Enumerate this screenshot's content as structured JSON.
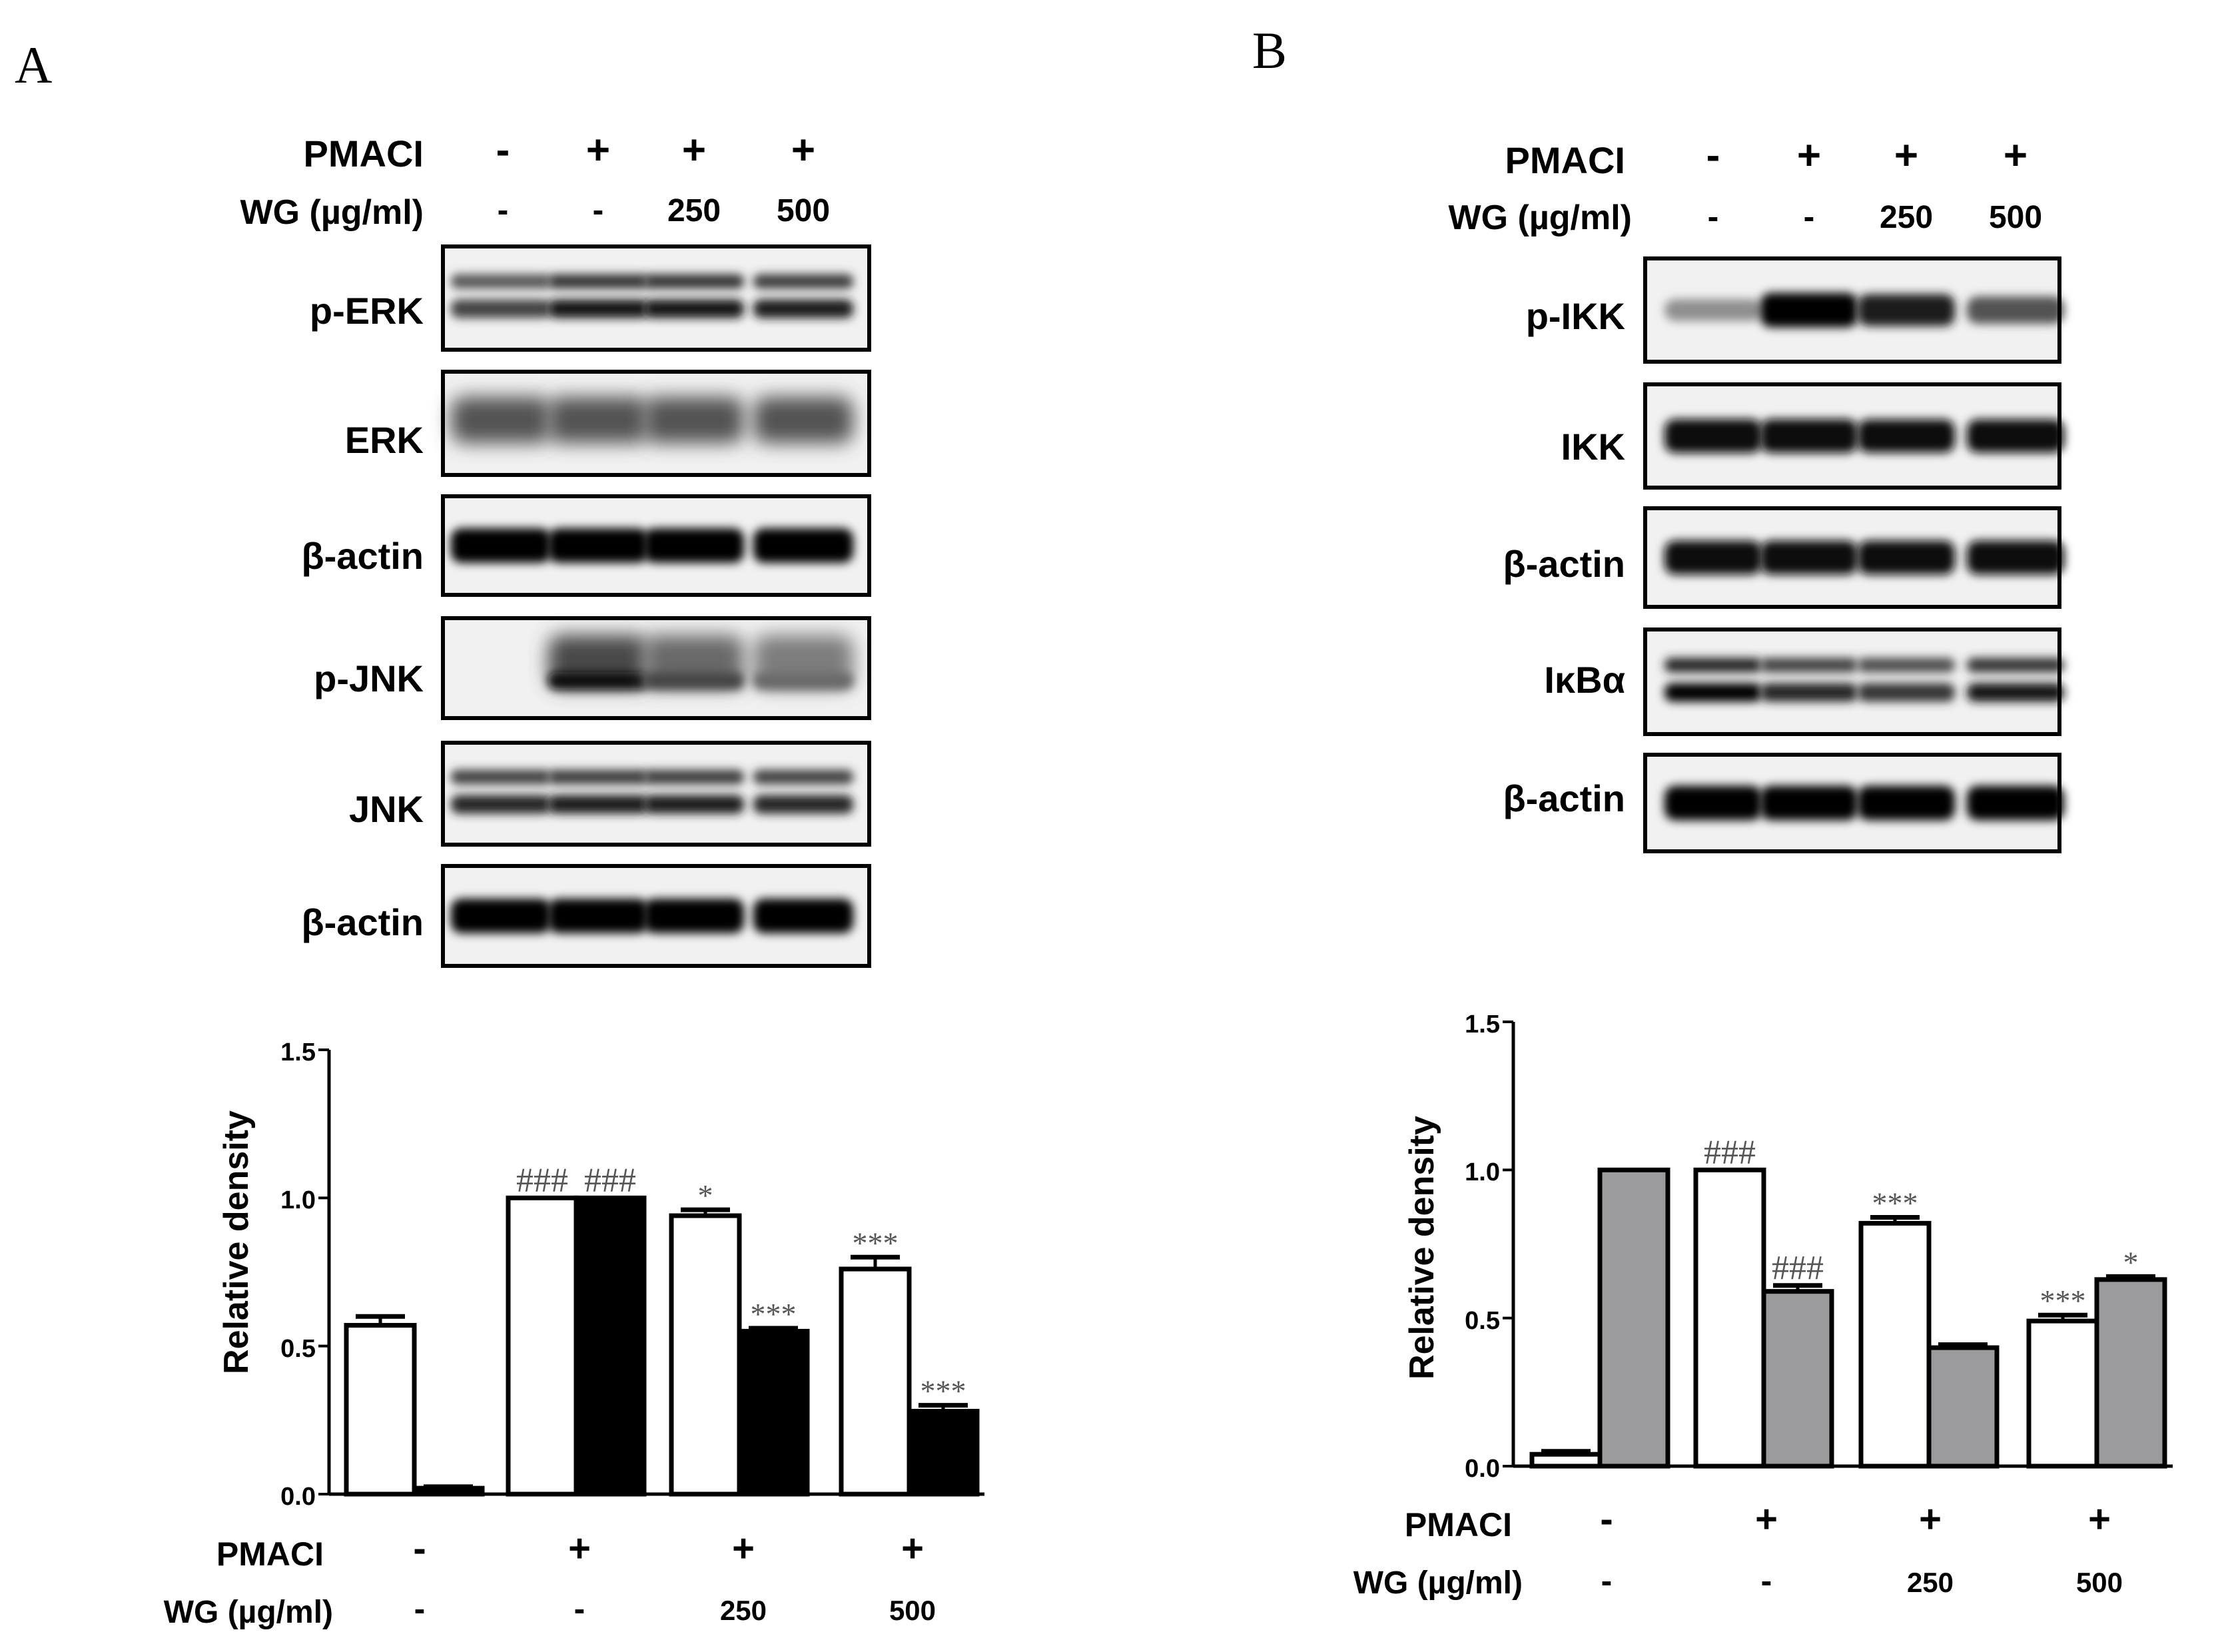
{
  "panels": [
    {
      "letter": "A",
      "header": {
        "pmaci_label": "PMACI",
        "wg_label": "WG (µg/ml)",
        "pmaci_values": [
          "-",
          "+",
          "+",
          "+"
        ],
        "wg_values": [
          "-",
          "-",
          "250",
          "500"
        ]
      },
      "blots": [
        {
          "label": "p-ERK",
          "pattern": "double",
          "intensity": [
            0.55,
            0.85,
            0.85,
            0.8
          ]
        },
        {
          "label": "ERK",
          "pattern": "diffuse",
          "intensity": [
            0.45,
            0.45,
            0.45,
            0.45
          ]
        },
        {
          "label": "β-actin",
          "pattern": "single",
          "intensity": [
            1,
            1,
            1,
            1
          ]
        },
        {
          "label": "p-JNK",
          "pattern": "smear",
          "intensity": [
            0.0,
            0.95,
            0.55,
            0.3
          ]
        },
        {
          "label": "JNK",
          "pattern": "double",
          "intensity": [
            0.75,
            0.8,
            0.8,
            0.75
          ]
        },
        {
          "label": "β-actin",
          "pattern": "single",
          "intensity": [
            1,
            1,
            1,
            1
          ]
        }
      ],
      "chart_axis": {
        "ylabel": "Relative density",
        "ticks": [
          "0.0",
          "0.5",
          "1.0",
          "1.5"
        ]
      },
      "chart_footer": {
        "pmaci_label": "PMACI",
        "wg_label": "WG (µg/ml)",
        "pmaci_values": [
          "-",
          "+",
          "+",
          "+"
        ],
        "wg_values": [
          "-",
          "-",
          "250",
          "500"
        ]
      }
    },
    {
      "letter": "B",
      "header": {
        "pmaci_label": "PMACI",
        "wg_label": "WG (µg/ml)",
        "pmaci_values": [
          "-",
          "+",
          "+",
          "+"
        ],
        "wg_values": [
          "-",
          "-",
          "250",
          "500"
        ]
      },
      "blots": [
        {
          "label": "p-IKK",
          "pattern": "single",
          "intensity": [
            0.05,
            1,
            0.8,
            0.45
          ]
        },
        {
          "label": "IKK",
          "pattern": "single",
          "intensity": [
            0.95,
            0.95,
            0.9,
            0.9
          ]
        },
        {
          "label": "β-actin",
          "pattern": "single",
          "intensity": [
            0.95,
            0.95,
            0.95,
            0.95
          ]
        },
        {
          "label": "IκBα",
          "pattern": "double",
          "intensity": [
            1,
            0.75,
            0.65,
            0.85
          ]
        },
        {
          "label": "β-actin",
          "pattern": "single",
          "intensity": [
            1,
            1,
            1,
            1
          ]
        }
      ],
      "chart_axis": {
        "ylabel": "Relative density",
        "ticks": [
          "0.0",
          "0.5",
          "1.0",
          "1.5"
        ]
      },
      "chart_footer": {
        "pmaci_label": "PMACI",
        "wg_label": "WG (µg/ml)",
        "pmaci_values": [
          "-",
          "+",
          "+",
          "+"
        ],
        "wg_values": [
          "-",
          "-",
          "250",
          "500"
        ]
      }
    }
  ],
  "chart_data": [
    {
      "type": "bar",
      "ylabel": "Relative density",
      "ylim": [
        0,
        1.5
      ],
      "yticks": [
        0.0,
        0.5,
        1.0,
        1.5
      ],
      "grid": false,
      "groups": 4,
      "series": [
        {
          "color": "#ffffff",
          "values": [
            0.57,
            1.0,
            0.94,
            0.76
          ],
          "errors": [
            0.03,
            0.0,
            0.02,
            0.04
          ],
          "annotations": [
            "",
            "###",
            "*",
            "***"
          ]
        },
        {
          "color": "#000000",
          "values": [
            0.02,
            1.0,
            0.55,
            0.28
          ],
          "errors": [
            0.005,
            0.0,
            0.01,
            0.02
          ],
          "annotations": [
            "",
            "###",
            "***",
            "***"
          ]
        }
      ]
    },
    {
      "type": "bar",
      "ylabel": "Relative density",
      "ylim": [
        0,
        1.5
      ],
      "yticks": [
        0.0,
        0.5,
        1.0,
        1.5
      ],
      "grid": false,
      "groups": 4,
      "series": [
        {
          "color": "#ffffff",
          "values": [
            0.04,
            1.0,
            0.82,
            0.49
          ],
          "errors": [
            0.01,
            0.0,
            0.02,
            0.02
          ],
          "annotations": [
            "",
            "###",
            "***",
            "***"
          ]
        },
        {
          "color": "#9b9b9e",
          "values": [
            1.0,
            0.59,
            0.4,
            0.63
          ],
          "errors": [
            0.0,
            0.02,
            0.01,
            0.01
          ],
          "annotations": [
            "",
            "###",
            "",
            "*"
          ]
        }
      ]
    }
  ]
}
